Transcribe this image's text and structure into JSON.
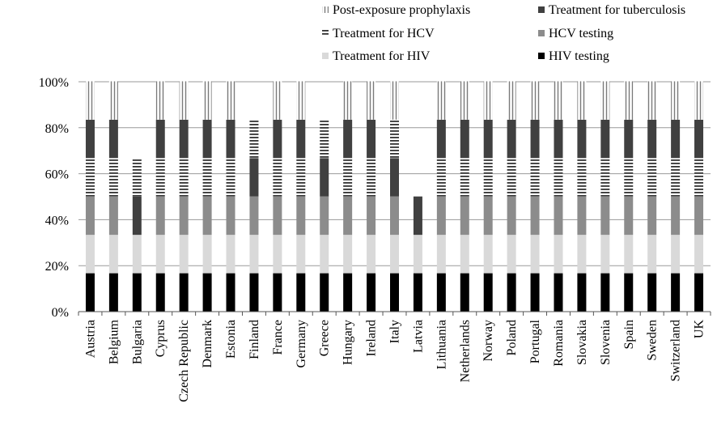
{
  "chart_data": {
    "type": "bar",
    "stacked": true,
    "percent_scale": true,
    "title": "",
    "xlabel": "",
    "ylabel": "",
    "ylim": [
      0,
      100
    ],
    "y_ticks": [
      "0%",
      "20%",
      "40%",
      "60%",
      "80%",
      "100%"
    ],
    "grid": true,
    "legend_position": "top-right",
    "categories": [
      "Austria",
      "Belgium",
      "Bulgaria",
      "Cyprus",
      "Czech Republic",
      "Denmark",
      "Estonia",
      "Finland",
      "France",
      "Germany",
      "Greece",
      "Hungary",
      "Ireland",
      "Italy",
      "Latvia",
      "Lithuania",
      "Netherlands",
      "Norway",
      "Poland",
      "Portugal",
      "Romania",
      "Slovakia",
      "Slovenia",
      "Spain",
      "Sweden",
      "Switzerland",
      "UK"
    ],
    "series": [
      {
        "name": "HIV testing",
        "pattern": "solid-black",
        "color": "#000000",
        "values": [
          16.7,
          16.7,
          16.7,
          16.7,
          16.7,
          16.7,
          16.7,
          16.7,
          16.7,
          16.7,
          16.7,
          16.7,
          16.7,
          16.7,
          16.7,
          16.7,
          16.7,
          16.7,
          16.7,
          16.7,
          16.7,
          16.7,
          16.7,
          16.7,
          16.7,
          16.7,
          16.7
        ]
      },
      {
        "name": "Treatment for HIV",
        "pattern": "solid-lightgray",
        "color": "#d9d9d9",
        "values": [
          16.7,
          16.7,
          16.7,
          16.7,
          16.7,
          16.7,
          16.7,
          16.7,
          16.7,
          16.7,
          16.7,
          16.7,
          16.7,
          16.7,
          16.7,
          16.7,
          16.7,
          16.7,
          16.7,
          16.7,
          16.7,
          16.7,
          16.7,
          16.7,
          16.7,
          16.7,
          16.7
        ]
      },
      {
        "name": "HCV testing",
        "pattern": "solid-midgray",
        "color": "#8c8c8c",
        "values": [
          16.7,
          16.7,
          0,
          16.7,
          16.7,
          16.7,
          16.7,
          16.7,
          16.7,
          16.7,
          16.7,
          16.7,
          16.7,
          16.7,
          0,
          16.7,
          16.7,
          16.7,
          16.7,
          16.7,
          16.7,
          16.7,
          16.7,
          16.7,
          16.7,
          16.7,
          16.7
        ]
      },
      {
        "name": "Treatment for HCV",
        "pattern": "horizontal-lines",
        "color": "#4a4a4a",
        "values": [
          16.7,
          16.7,
          0,
          16.7,
          16.7,
          16.7,
          16.7,
          0,
          16.7,
          16.7,
          0,
          16.7,
          16.7,
          0,
          0,
          16.7,
          16.7,
          16.7,
          16.7,
          16.7,
          16.7,
          16.7,
          16.7,
          16.7,
          16.7,
          16.7,
          16.7
        ]
      },
      {
        "name": "Treatment for tuberculosis",
        "pattern": "solid-darkgray",
        "color": "#404040",
        "values": [
          16.7,
          16.7,
          16.7,
          16.7,
          16.7,
          16.7,
          16.7,
          16.7,
          16.7,
          16.7,
          16.7,
          16.7,
          16.7,
          16.7,
          16.7,
          16.7,
          16.7,
          16.7,
          16.7,
          16.7,
          16.7,
          16.7,
          16.7,
          16.7,
          16.7,
          16.7,
          16.7
        ]
      },
      {
        "name": "Treatment for HCV",
        "pattern": "horizontal-lines",
        "color": "#4a4a4a",
        "values": [
          0,
          0,
          16.7,
          0,
          0,
          0,
          0,
          16.7,
          0,
          0,
          16.7,
          0,
          0,
          16.7,
          0,
          0,
          0,
          0,
          0,
          0,
          0,
          0,
          0,
          0,
          0,
          0,
          0
        ],
        "legend": false
      },
      {
        "name": "Post-exposure prophylaxis",
        "pattern": "vertical-lines",
        "color": "#7a7a7a",
        "values": [
          16.7,
          16.7,
          0,
          16.7,
          16.7,
          16.7,
          16.7,
          0,
          16.7,
          16.7,
          0,
          16.7,
          16.7,
          16.7,
          0,
          16.7,
          16.7,
          16.7,
          16.7,
          16.7,
          16.7,
          16.7,
          16.7,
          16.7,
          16.7,
          16.7,
          16.7
        ]
      }
    ],
    "legend": [
      {
        "name": "Post-exposure prophylaxis",
        "pattern": "vertical-lines",
        "color": "#7a7a7a"
      },
      {
        "name": "Treatment for tuberculosis",
        "pattern": "solid-darkgray",
        "color": "#404040"
      },
      {
        "name": "Treatment for HCV",
        "pattern": "horizontal-lines",
        "color": "#4a4a4a"
      },
      {
        "name": "HCV testing",
        "pattern": "solid-midgray",
        "color": "#8c8c8c"
      },
      {
        "name": "Treatment for HIV",
        "pattern": "solid-lightgray",
        "color": "#d9d9d9"
      },
      {
        "name": "HIV testing",
        "pattern": "solid-black",
        "color": "#000000"
      }
    ]
  }
}
